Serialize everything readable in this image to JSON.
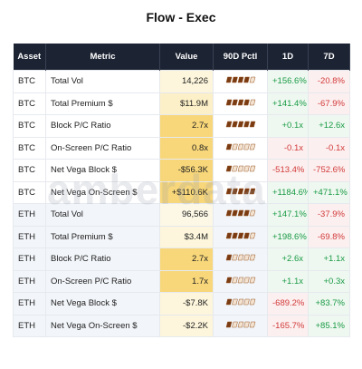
{
  "title": "Flow - Exec",
  "watermark": "amberdata",
  "table": {
    "header": [
      "Asset",
      "Metric",
      "Value",
      "90D Pctl",
      "1D",
      "7D"
    ],
    "rows": [
      {
        "asset": "BTC",
        "metric": "Total Vol",
        "value": "14,226",
        "value_bg": "#fdf6dc",
        "pctl": 4,
        "d1": "+156.6%",
        "d7": "-20.8%"
      },
      {
        "asset": "BTC",
        "metric": "Total Premium $",
        "value": "$11.9M",
        "value_bg": "#fcf0c8",
        "pctl": 4,
        "d1": "+141.4%",
        "d7": "-67.9%"
      },
      {
        "asset": "BTC",
        "metric": "Block P/C Ratio",
        "value": "2.7x",
        "value_bg": "#f8d77a",
        "pctl": 5,
        "d1": "+0.1x",
        "d7": "+12.6x"
      },
      {
        "asset": "BTC",
        "metric": "On-Screen P/C Ratio",
        "value": "0.8x",
        "value_bg": "#f8d77a",
        "pctl": 1,
        "d1": "-0.1x",
        "d7": "-0.1x"
      },
      {
        "asset": "BTC",
        "metric": "Net Vega Block $",
        "value": "-$56.3K",
        "value_bg": "#f8d77a",
        "pctl": 1,
        "d1": "-513.4%",
        "d7": "-752.6%"
      },
      {
        "asset": "BTC",
        "metric": "Net Vega On-Screen $",
        "value": "+$110.6K",
        "value_bg": "#f8d77a",
        "pctl": 5,
        "d1": "+1184.6%",
        "d7": "+471.1%"
      },
      {
        "asset": "ETH",
        "metric": "Total Vol",
        "value": "96,566",
        "value_bg": "#fdf8e6",
        "pctl": 4,
        "d1": "+147.1%",
        "d7": "-37.9%"
      },
      {
        "asset": "ETH",
        "metric": "Total Premium $",
        "value": "$3.4M",
        "value_bg": "#fdf6dc",
        "pctl": 4,
        "d1": "+198.6%",
        "d7": "-69.8%"
      },
      {
        "asset": "ETH",
        "metric": "Block P/C Ratio",
        "value": "2.7x",
        "value_bg": "#f8d77a",
        "pctl": 1,
        "d1": "+2.6x",
        "d7": "+1.1x"
      },
      {
        "asset": "ETH",
        "metric": "On-Screen P/C Ratio",
        "value": "1.7x",
        "value_bg": "#f8d77a",
        "pctl": 1,
        "d1": "+1.1x",
        "d7": "+0.3x"
      },
      {
        "asset": "ETH",
        "metric": "Net Vega Block $",
        "value": "-$7.8K",
        "value_bg": "#fdf6dc",
        "pctl": 1,
        "d1": "-689.2%",
        "d7": "+83.7%"
      },
      {
        "asset": "ETH",
        "metric": "Net Vega On-Screen $",
        "value": "-$2.2K",
        "value_bg": "#fdf6dc",
        "pctl": 1,
        "d1": "-165.7%",
        "d7": "+85.1%"
      }
    ]
  }
}
